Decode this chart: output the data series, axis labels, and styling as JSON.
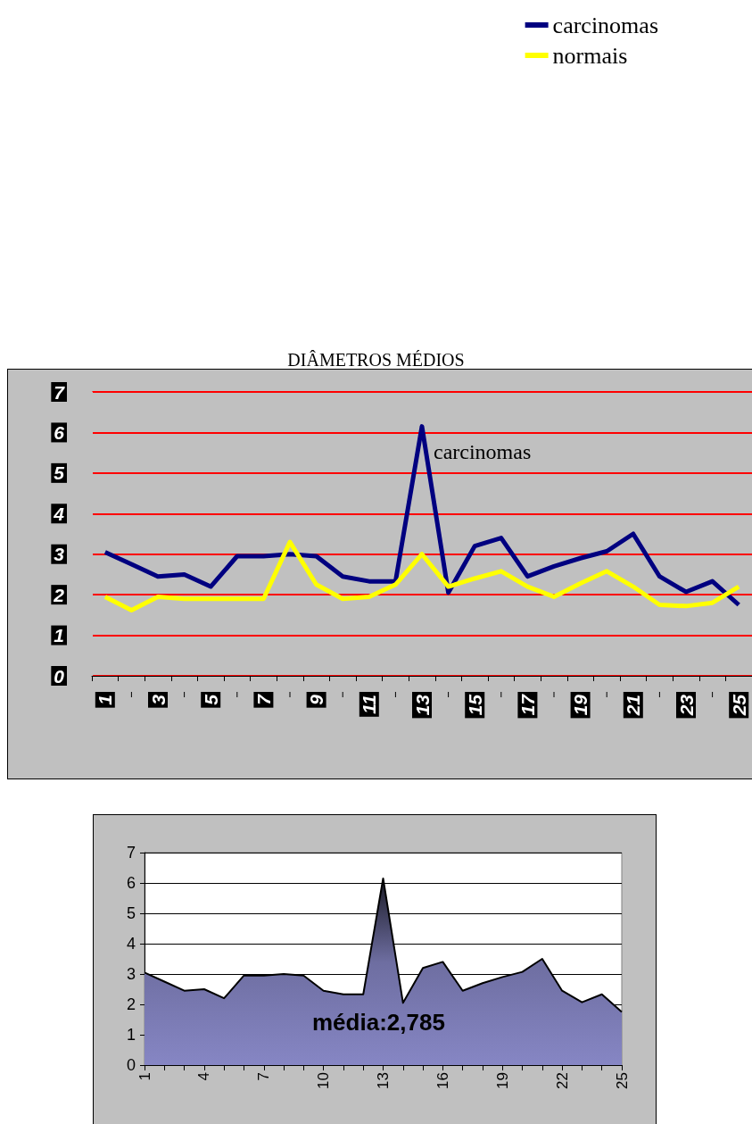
{
  "chart_data": [
    {
      "type": "line",
      "title": "DIÂMETROS MÉDIOS",
      "categories": [
        "1",
        null,
        "3",
        null,
        "5",
        null,
        "7",
        null,
        "9",
        null,
        "11",
        null,
        "13",
        null,
        "15",
        null,
        "17",
        null,
        "19",
        null,
        "21",
        null,
        "23",
        null,
        "25"
      ],
      "series": [
        {
          "name": "carcinomas",
          "color": "#000080",
          "values": [
            3.05,
            2.75,
            2.45,
            2.5,
            2.2,
            2.95,
            2.95,
            3.0,
            2.95,
            2.45,
            2.33,
            2.33,
            6.15,
            2.05,
            3.2,
            3.4,
            2.45,
            2.7,
            2.9,
            3.07,
            3.5,
            2.45,
            2.07,
            2.33,
            1.75
          ]
        },
        {
          "name": "normais",
          "color": "#ffff00",
          "values": [
            1.95,
            1.62,
            1.95,
            1.9,
            1.9,
            1.9,
            1.9,
            3.3,
            2.25,
            1.9,
            1.95,
            2.25,
            3.0,
            2.2,
            2.4,
            2.58,
            2.2,
            1.95,
            2.28,
            2.58,
            2.2,
            1.75,
            1.72,
            1.8,
            2.2
          ]
        }
      ],
      "ylim": [
        0,
        7
      ],
      "yticks": [
        0,
        1,
        2,
        3,
        4,
        5,
        6,
        7
      ],
      "grid": "y",
      "legend": "top right",
      "marker": "none",
      "annotations": [
        "carcinomas"
      ]
    },
    {
      "type": "area",
      "categories": [
        "1",
        null,
        null,
        "4",
        null,
        null,
        "7",
        null,
        null,
        "10",
        null,
        null,
        "13",
        null,
        null,
        "16",
        null,
        null,
        "19",
        null,
        null,
        "22",
        null,
        null,
        "25"
      ],
      "values": [
        3.05,
        2.75,
        2.45,
        2.5,
        2.2,
        2.95,
        2.95,
        3.0,
        2.95,
        2.45,
        2.33,
        2.33,
        6.15,
        2.05,
        3.2,
        3.4,
        2.45,
        2.7,
        2.9,
        3.07,
        3.5,
        2.45,
        2.07,
        2.33,
        1.75
      ],
      "color": "#8686c4",
      "ylim": [
        0,
        7
      ],
      "yticks": [
        0,
        1,
        2,
        3,
        4,
        5,
        6,
        7
      ],
      "grid": "y",
      "marker": "none",
      "annotations": [
        "média:2,785"
      ]
    }
  ]
}
